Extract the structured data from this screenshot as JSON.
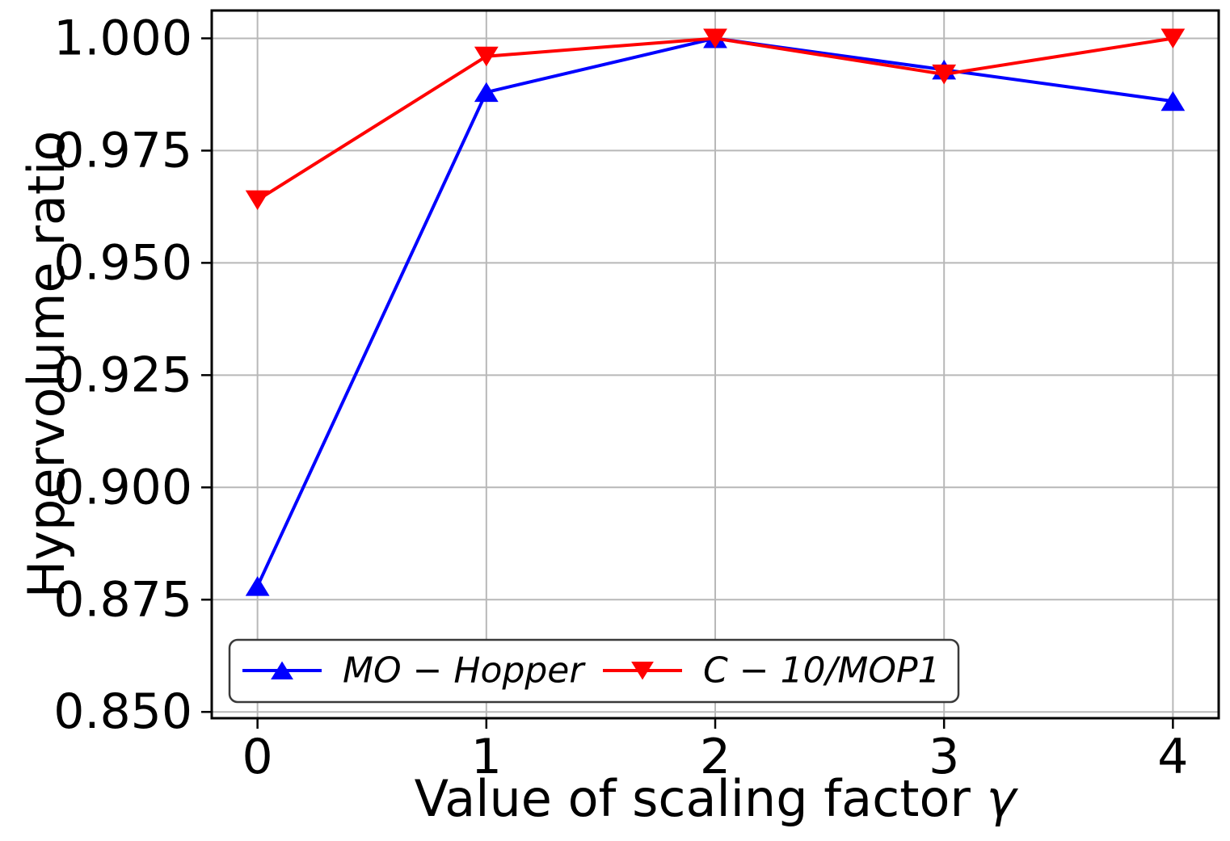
{
  "figure": {
    "background": "#ffffff",
    "text_color": "#000000"
  },
  "chart_data": {
    "type": "line",
    "title": "",
    "xlabel": "Value of scaling factor γ",
    "xlabel_text": "Value of scaling factor",
    "xlabel_symbol": "γ",
    "ylabel": "Hypervolume ratio",
    "x": [
      0,
      1,
      2,
      3,
      4
    ],
    "x_tick_labels": [
      "0",
      "1",
      "2",
      "3",
      "4"
    ],
    "y_ticks": [
      0.85,
      0.875,
      0.9,
      0.925,
      0.95,
      0.975,
      1.0
    ],
    "y_tick_labels": [
      "0.850",
      "0.875",
      "0.900",
      "0.925",
      "0.950",
      "0.975",
      "1.000"
    ],
    "xlim": [
      -0.2,
      4.2
    ],
    "ylim": [
      0.8486,
      1.0062
    ],
    "grid": true,
    "grid_color": "#b8b8b8",
    "spine_color": "#000000",
    "series": [
      {
        "name": "MO − Hopper",
        "color": "#0000ff",
        "marker": "triangle-up",
        "values": [
          0.878,
          0.988,
          1.0,
          0.993,
          0.986
        ]
      },
      {
        "name": "C − 10/MOP1",
        "color": "#ff0000",
        "marker": "triangle-down",
        "values": [
          0.964,
          0.996,
          1.0,
          0.992,
          1.0
        ]
      }
    ],
    "legend": {
      "position": "lower-left",
      "edge_color": "#3a3a3a",
      "fill": "#ffffff",
      "labels": [
        "MO − Hopper",
        "C − 10/MOP1"
      ]
    }
  }
}
